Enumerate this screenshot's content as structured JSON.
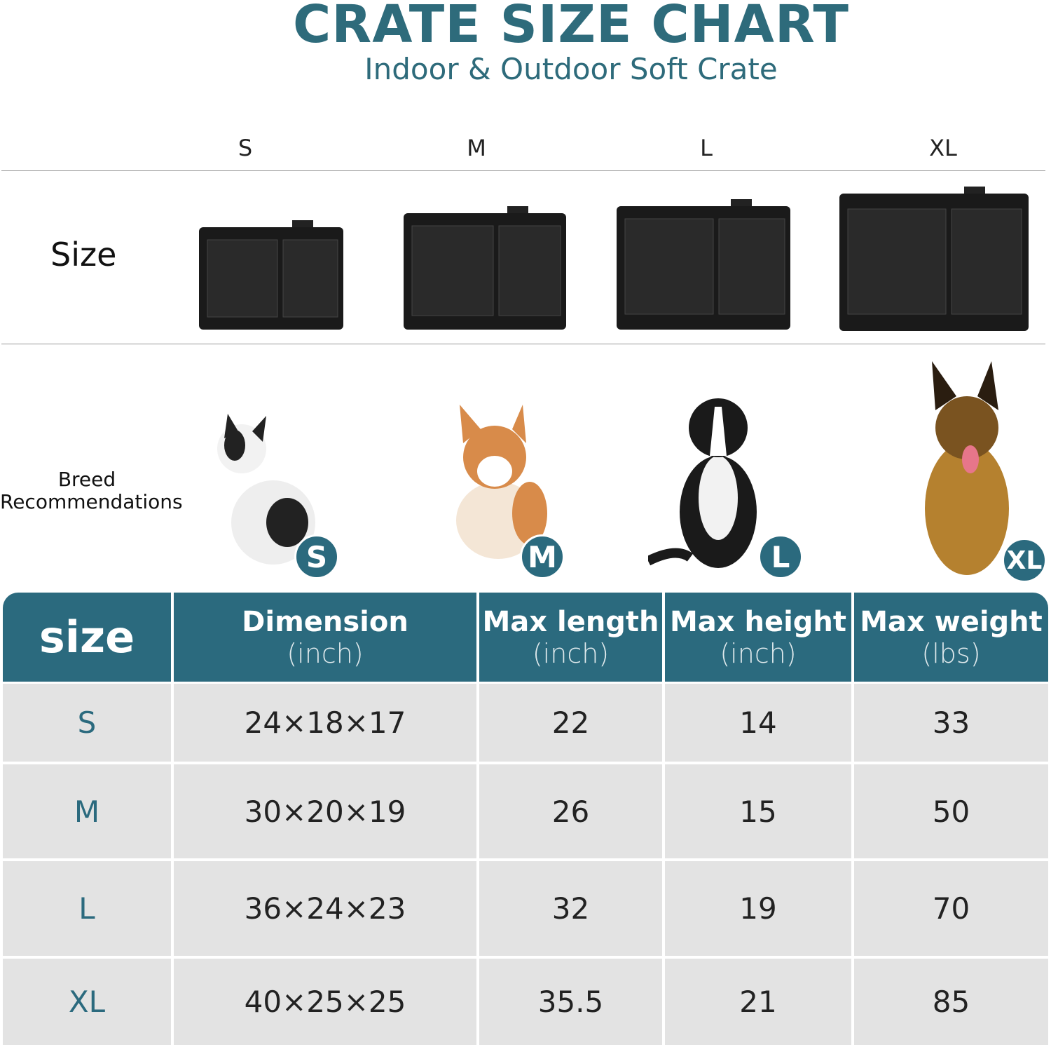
{
  "title": "CRATE SIZE CHART",
  "subtitle": "Indoor & Outdoor Soft Crate",
  "size_columns": [
    "S",
    "M",
    "L",
    "XL"
  ],
  "row_labels": {
    "size": "Size",
    "breed": "Breed",
    "breed2": "Recommendations"
  },
  "badges": [
    "S",
    "M",
    "L",
    "XL"
  ],
  "colors": {
    "accent": "#2b6a7e",
    "cell": "#e3e3e3"
  },
  "table": {
    "headers": [
      {
        "main": "size",
        "unit": ""
      },
      {
        "main": "Dimension",
        "unit": "(inch)"
      },
      {
        "main": "Max length",
        "unit": "(inch)"
      },
      {
        "main": "Max height",
        "unit": "(inch)"
      },
      {
        "main": "Max weight",
        "unit": "(lbs)"
      }
    ],
    "rows": [
      [
        "S",
        "24×18×17",
        "22",
        "14",
        "33"
      ],
      [
        "M",
        "30×20×19",
        "26",
        "15",
        "50"
      ],
      [
        "L",
        "36×24×23",
        "32",
        "19",
        "70"
      ],
      [
        "XL",
        "40×25×25",
        "35.5",
        "21",
        "85"
      ]
    ]
  }
}
